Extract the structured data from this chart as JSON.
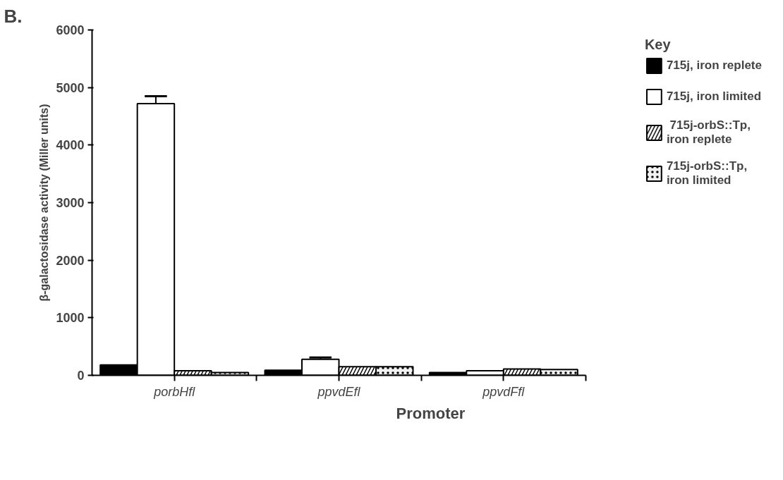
{
  "chart_data": {
    "type": "bar",
    "xlabel": "Promoter",
    "ylabel": "β-galactosidase activity (Miller units)",
    "legend_title": "Key",
    "annotations": [
      "B."
    ],
    "categories": [
      "porbHfl",
      "ppvdEfl",
      "ppvdFfl"
    ],
    "series": [
      {
        "name": "715j, iron replete",
        "color": "#000000",
        "values": [
          180,
          90,
          50
        ]
      },
      {
        "name": "715j, iron limited",
        "color": "#ffffff",
        "values": [
          4720,
          280,
          80
        ],
        "errors": [
          130,
          30,
          null
        ]
      },
      {
        "name": " 715j-orbS::Tp,\niron replete",
        "color": "#000000",
        "values": [
          80,
          150,
          110
        ]
      },
      {
        "name": "715j-orbS::Tp,\niron limited",
        "color": "#f2f2f2",
        "values": [
          50,
          150,
          100
        ]
      }
    ],
    "ylim": [
      0,
      6000
    ],
    "yticks": [
      0,
      1000,
      2000,
      3000,
      4000,
      5000,
      6000
    ],
    "grid": false,
    "legend": "right"
  }
}
